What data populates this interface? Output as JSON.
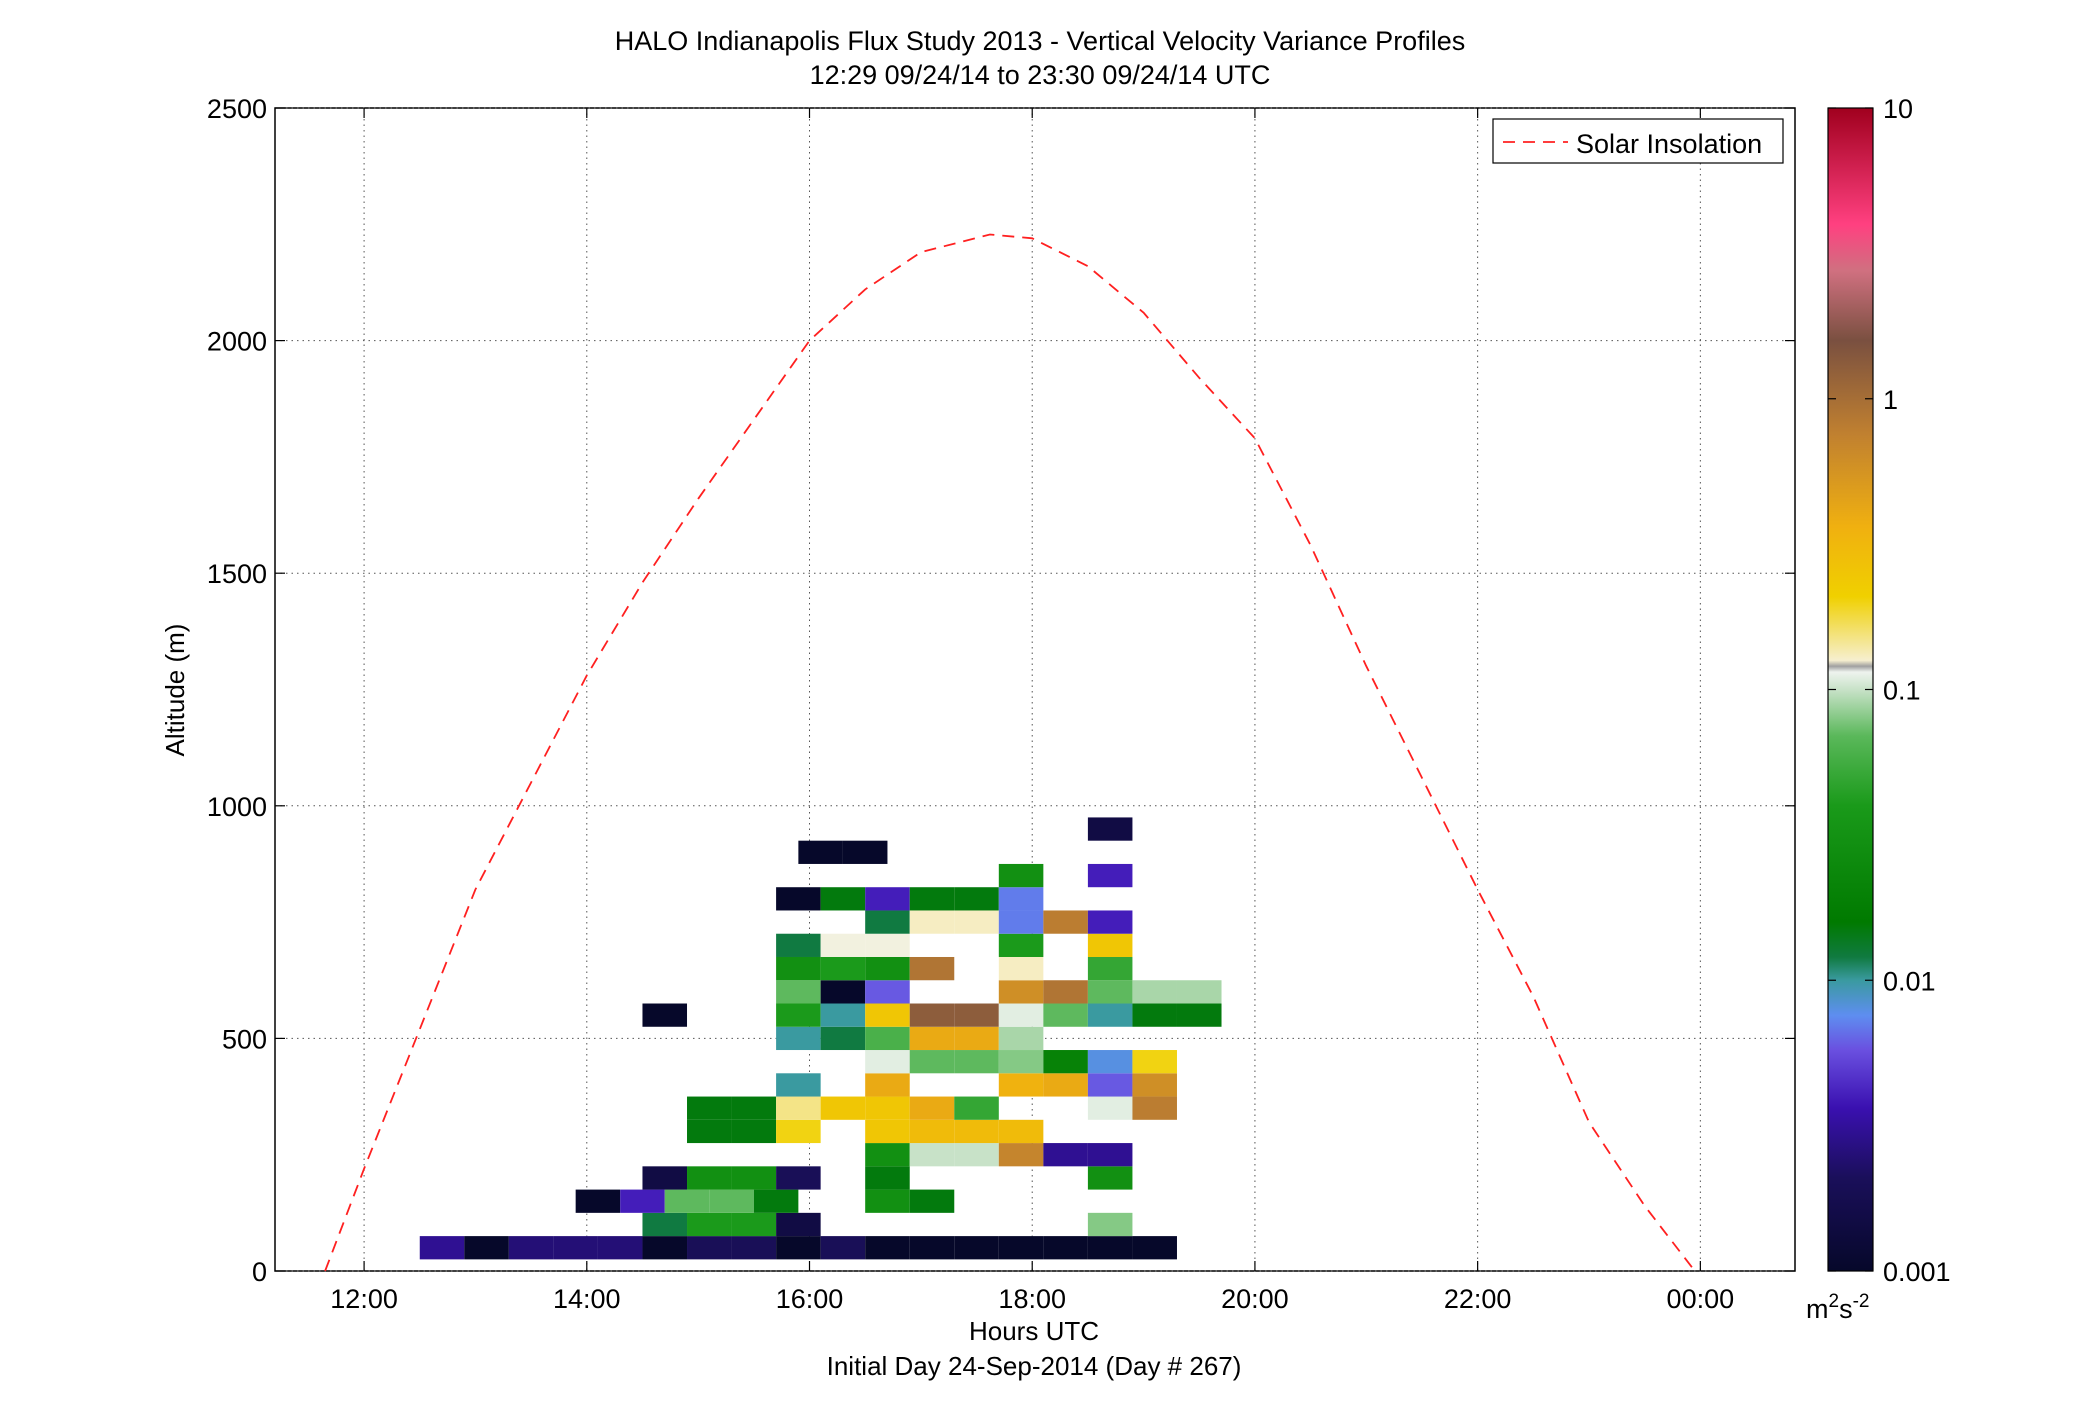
{
  "chart_data": {
    "type": "heatmap",
    "title": "HALO Indianapolis Flux Study 2013 - Vertical Velocity Variance Profiles",
    "subtitle": "12:29 09/24/14 to 23:30 09/24/14  UTC",
    "xlabel": "Hours UTC",
    "xlabel2": "Initial Day 24-Sep-2014 (Day # 267)",
    "ylabel": "Altitude (m)",
    "xlim": [
      11.2,
      0.85
    ],
    "xlim_note": "",
    "ylim": [
      0,
      2500
    ],
    "x_ticks": [
      {
        "value": 12,
        "label": "12:00"
      },
      {
        "value": 14,
        "label": "14:00"
      },
      {
        "value": 16,
        "label": "16:00"
      },
      {
        "value": 18,
        "label": "18:00"
      },
      {
        "value": 20,
        "label": "20:00"
      },
      {
        "value": 22,
        "label": "22:00"
      },
      {
        "value": 24,
        "label": "00:00"
      }
    ],
    "y_ticks": [
      0,
      500,
      1000,
      1500,
      2000,
      2500
    ],
    "grid": true,
    "legend": {
      "position": "top-right",
      "entries": [
        "Solar Insolation"
      ]
    },
    "colorbar": {
      "scale": "log",
      "range": [
        0.001,
        10
      ],
      "tick_values": [
        0.001,
        0.01,
        0.1,
        1,
        10
      ],
      "tick_labels": [
        "0.001",
        "0.01",
        "0.1",
        "1",
        "10"
      ],
      "unit_base": "m",
      "unit_exp1": "2",
      "unit_mid": "s",
      "unit_exp2": "-2"
    },
    "bin": {
      "width_hours": 0.4,
      "height_m": 50
    },
    "cells": [
      [
        12.5,
        50,
        0.003
      ],
      [
        12.9,
        50,
        0.001
      ],
      [
        13.3,
        50,
        0.0025
      ],
      [
        13.7,
        50,
        0.0025
      ],
      [
        14.1,
        50,
        0.0025
      ],
      [
        14.5,
        50,
        0.001
      ],
      [
        14.9,
        50,
        0.002
      ],
      [
        15.3,
        50,
        0.002
      ],
      [
        15.7,
        50,
        0.001
      ],
      [
        16.1,
        50,
        0.002
      ],
      [
        16.5,
        50,
        0.001
      ],
      [
        16.9,
        50,
        0.001
      ],
      [
        17.3,
        50,
        0.001
      ],
      [
        17.7,
        50,
        0.001
      ],
      [
        18.1,
        50,
        0.001
      ],
      [
        18.5,
        50,
        0.001
      ],
      [
        18.9,
        50,
        0.001
      ],
      [
        14.5,
        100,
        0.012
      ],
      [
        14.9,
        100,
        0.04
      ],
      [
        15.3,
        100,
        0.04
      ],
      [
        15.7,
        100,
        0.0015
      ],
      [
        18.5,
        100,
        0.08
      ],
      [
        13.9,
        150,
        0.001
      ],
      [
        14.3,
        150,
        0.004
      ],
      [
        14.7,
        150,
        0.07
      ],
      [
        15.1,
        150,
        0.07
      ],
      [
        15.5,
        150,
        0.015
      ],
      [
        16.5,
        150,
        0.03
      ],
      [
        16.9,
        150,
        0.015
      ],
      [
        14.5,
        200,
        0.0015
      ],
      [
        14.9,
        200,
        0.03
      ],
      [
        15.3,
        200,
        0.03
      ],
      [
        15.7,
        200,
        0.002
      ],
      [
        16.5,
        200,
        0.015
      ],
      [
        18.5,
        200,
        0.03
      ],
      [
        16.5,
        250,
        0.03
      ],
      [
        16.9,
        250,
        0.1
      ],
      [
        17.3,
        250,
        0.1
      ],
      [
        17.7,
        250,
        0.7
      ],
      [
        18.1,
        250,
        0.003
      ],
      [
        18.5,
        250,
        0.003
      ],
      [
        14.9,
        300,
        0.015
      ],
      [
        15.3,
        300,
        0.015
      ],
      [
        15.7,
        300,
        0.2
      ],
      [
        16.5,
        300,
        0.25
      ],
      [
        16.9,
        300,
        0.3
      ],
      [
        17.3,
        300,
        0.3
      ],
      [
        17.7,
        300,
        0.3
      ],
      [
        14.9,
        350,
        0.015
      ],
      [
        15.3,
        350,
        0.015
      ],
      [
        15.7,
        350,
        0.15
      ],
      [
        16.1,
        350,
        0.25
      ],
      [
        16.5,
        350,
        0.25
      ],
      [
        16.9,
        350,
        0.4
      ],
      [
        17.3,
        350,
        0.05
      ],
      [
        18.5,
        350,
        0.11
      ],
      [
        18.9,
        350,
        0.8
      ],
      [
        15.7,
        400,
        0.01
      ],
      [
        16.5,
        400,
        0.4
      ],
      [
        17.7,
        400,
        0.35
      ],
      [
        18.1,
        400,
        0.4
      ],
      [
        18.5,
        400,
        0.006
      ],
      [
        18.9,
        400,
        0.6
      ],
      [
        16.5,
        450,
        0.11
      ],
      [
        16.9,
        450,
        0.07
      ],
      [
        17.3,
        450,
        0.07
      ],
      [
        17.7,
        450,
        0.08
      ],
      [
        18.1,
        450,
        0.02
      ],
      [
        18.5,
        450,
        0.008
      ],
      [
        18.9,
        450,
        0.2
      ],
      [
        15.7,
        500,
        0.01
      ],
      [
        16.1,
        500,
        0.012
      ],
      [
        16.5,
        500,
        0.06
      ],
      [
        16.9,
        500,
        0.4
      ],
      [
        17.3,
        500,
        0.4
      ],
      [
        17.7,
        500,
        0.09
      ],
      [
        14.5,
        550,
        0.001
      ],
      [
        15.7,
        550,
        0.04
      ],
      [
        16.1,
        550,
        0.01
      ],
      [
        16.5,
        550,
        0.25
      ],
      [
        16.9,
        550,
        1.3
      ],
      [
        17.3,
        550,
        1.3
      ],
      [
        17.7,
        550,
        0.11
      ],
      [
        18.1,
        550,
        0.07
      ],
      [
        18.5,
        550,
        0.01
      ],
      [
        18.9,
        550,
        0.015
      ],
      [
        19.3,
        550,
        0.015
      ],
      [
        15.7,
        600,
        0.07
      ],
      [
        16.1,
        600,
        0.001
      ],
      [
        16.5,
        600,
        0.006
      ],
      [
        17.7,
        600,
        0.6
      ],
      [
        18.1,
        600,
        0.9
      ],
      [
        18.5,
        600,
        0.07
      ],
      [
        18.9,
        600,
        0.09
      ],
      [
        19.3,
        600,
        0.09
      ],
      [
        15.7,
        650,
        0.03
      ],
      [
        16.1,
        650,
        0.04
      ],
      [
        16.5,
        650,
        0.03
      ],
      [
        16.9,
        650,
        0.9
      ],
      [
        17.7,
        650,
        0.13
      ],
      [
        18.5,
        650,
        0.05
      ],
      [
        15.7,
        700,
        0.012
      ],
      [
        16.1,
        700,
        0.12
      ],
      [
        16.5,
        700,
        0.12
      ],
      [
        17.7,
        700,
        0.04
      ],
      [
        18.5,
        700,
        0.25
      ],
      [
        16.5,
        750,
        0.012
      ],
      [
        16.9,
        750,
        0.13
      ],
      [
        17.3,
        750,
        0.13
      ],
      [
        17.7,
        750,
        0.007
      ],
      [
        18.1,
        750,
        0.8
      ],
      [
        18.5,
        750,
        0.004
      ],
      [
        15.7,
        800,
        0.001
      ],
      [
        16.1,
        800,
        0.015
      ],
      [
        16.5,
        800,
        0.004
      ],
      [
        16.9,
        800,
        0.015
      ],
      [
        17.3,
        800,
        0.015
      ],
      [
        17.7,
        800,
        0.007
      ],
      [
        17.7,
        850,
        0.03
      ],
      [
        18.5,
        850,
        0.004
      ],
      [
        15.9,
        900,
        0.001
      ],
      [
        16.3,
        900,
        0.001
      ],
      [
        18.5,
        950,
        0.0015
      ]
    ],
    "series": [
      {
        "name": "Solar Insolation",
        "style": "dashed",
        "color": "#ff2020",
        "x": [
          11.65,
          12.0,
          12.5,
          13.0,
          13.5,
          14.0,
          14.5,
          15.0,
          15.5,
          16.0,
          16.5,
          17.0,
          17.62,
          18.0,
          18.5,
          19.0,
          19.5,
          20.0,
          20.5,
          21.0,
          21.5,
          22.0,
          22.5,
          23.0,
          23.5,
          23.95
        ],
        "y": [
          0,
          220,
          520,
          820,
          1050,
          1280,
          1480,
          1660,
          1830,
          2000,
          2110,
          2190,
          2228,
          2220,
          2160,
          2060,
          1920,
          1790,
          1560,
          1300,
          1060,
          820,
          590,
          320,
          140,
          0
        ]
      }
    ]
  }
}
